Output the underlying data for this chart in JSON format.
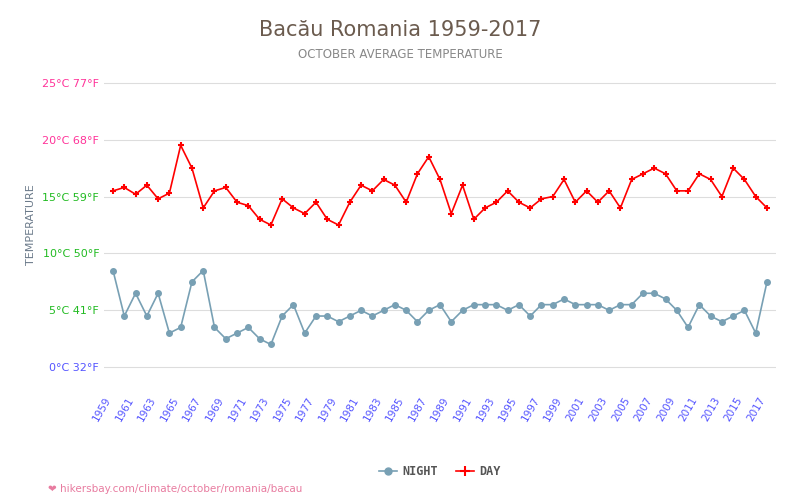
{
  "title": "Bacău Romania 1959-2017",
  "subtitle": "OCTOBER AVERAGE TEMPERATURE",
  "ylabel": "TEMPERATURE",
  "footer": "hikersbay.com/climate/october/romania/bacau",
  "title_color": "#6b5b4e",
  "subtitle_color": "#888888",
  "ylabel_color": "#6b7a8a",
  "footer_color": "#e87ca0",
  "bg_color": "#ffffff",
  "grid_color": "#dddddd",
  "years": [
    1959,
    1960,
    1961,
    1962,
    1963,
    1964,
    1965,
    1966,
    1967,
    1968,
    1969,
    1970,
    1971,
    1972,
    1973,
    1974,
    1975,
    1976,
    1977,
    1978,
    1979,
    1980,
    1981,
    1982,
    1983,
    1984,
    1985,
    1986,
    1987,
    1988,
    1989,
    1990,
    1991,
    1992,
    1993,
    1994,
    1995,
    1996,
    1997,
    1998,
    1999,
    2000,
    2001,
    2002,
    2003,
    2004,
    2005,
    2006,
    2007,
    2008,
    2009,
    2010,
    2011,
    2012,
    2013,
    2014,
    2015,
    2016,
    2017
  ],
  "day_temps": [
    15.5,
    15.8,
    15.2,
    16.0,
    14.8,
    15.3,
    19.5,
    17.5,
    14.0,
    15.5,
    15.8,
    14.5,
    14.2,
    13.0,
    12.5,
    14.8,
    14.0,
    13.5,
    14.5,
    13.0,
    12.5,
    14.5,
    16.0,
    15.5,
    16.5,
    16.0,
    14.5,
    17.0,
    18.5,
    16.5,
    13.5,
    16.0,
    13.0,
    14.0,
    14.5,
    15.5,
    14.5,
    14.0,
    14.8,
    15.0,
    16.5,
    14.5,
    15.5,
    14.5,
    15.5,
    14.0,
    16.5,
    17.0,
    17.5,
    17.0,
    15.5,
    15.5,
    17.0,
    16.5,
    15.0,
    17.5,
    16.5,
    15.0,
    14.0
  ],
  "night_temps": [
    8.5,
    4.5,
    6.5,
    4.5,
    6.5,
    3.0,
    3.5,
    7.5,
    8.5,
    3.5,
    2.5,
    3.0,
    3.5,
    2.5,
    2.0,
    4.5,
    5.5,
    3.0,
    4.5,
    4.5,
    4.0,
    4.5,
    5.0,
    4.5,
    5.0,
    5.5,
    5.0,
    4.0,
    5.0,
    5.5,
    4.0,
    5.0,
    5.5,
    5.5,
    5.5,
    5.0,
    5.5,
    4.5,
    5.5,
    5.5,
    6.0,
    5.5,
    5.5,
    5.5,
    5.0,
    5.5,
    5.5,
    6.5,
    6.5,
    6.0,
    5.0,
    3.5,
    5.5,
    4.5,
    4.0,
    4.5,
    5.0,
    3.0,
    7.5
  ],
  "day_color": "#ff0000",
  "night_color": "#78a0b4",
  "ylim_min": -2,
  "ylim_max": 27,
  "yticks_celsius": [
    0,
    5,
    10,
    15,
    20,
    25
  ],
  "yticks_labels": [
    "0°C 32°F",
    "5°C 41°F",
    "10°C 50°F",
    "15°C 59°F",
    "20°C 68°F",
    "25°C 77°F"
  ],
  "ytick_colors": [
    "#5555ff",
    "#22bb22",
    "#22bb22",
    "#22bb22",
    "#ff3399",
    "#ff3399"
  ],
  "xtick_color": "#5555ff",
  "legend_night": "NIGHT",
  "legend_day": "DAY"
}
